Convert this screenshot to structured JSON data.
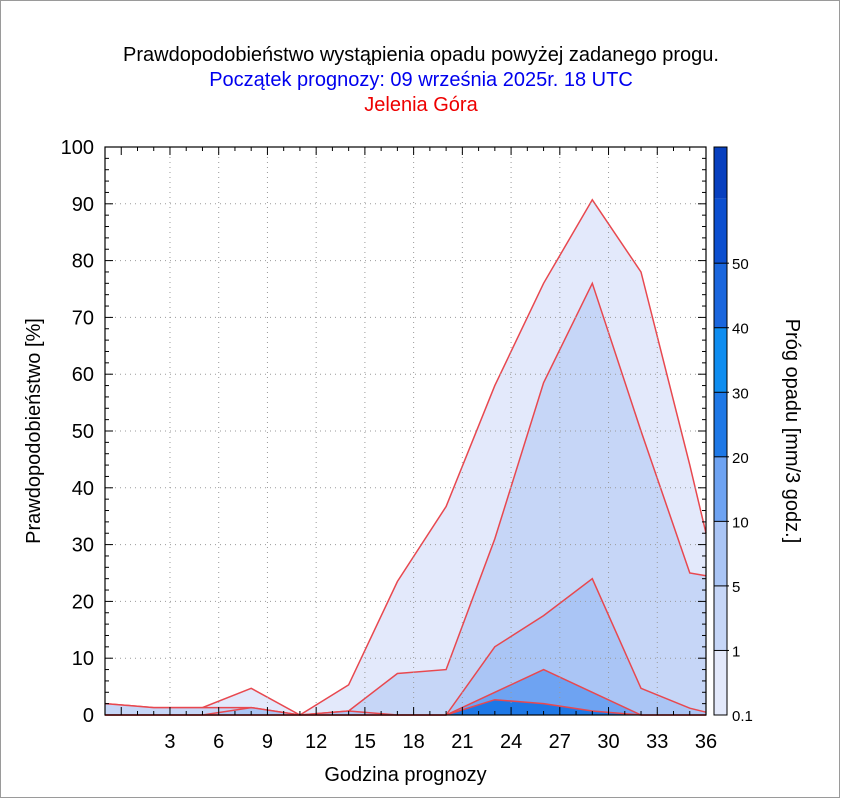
{
  "titles": {
    "line1": "Prawdopodobieństwo wystąpienia opadu powyżej zadanego progu.",
    "line2": "Początek prognozy: 09 września 2025r. 18 UTC",
    "line3": "Jelenia Góra"
  },
  "colors": {
    "title1": "#000000",
    "title2": "#0000ee",
    "title3": "#ee0000",
    "outline": "#e8484f"
  },
  "chart_data": {
    "type": "area",
    "xlabel": "Godzina prognozy",
    "ylabel": "Prawdopodobieństwo [%]",
    "colorbar_label": "Próg opadu [mm/3 godz.]",
    "xlim": [
      -1,
      36
    ],
    "ylim": [
      0,
      100
    ],
    "xticks": [
      "3",
      "6",
      "9",
      "12",
      "15",
      "18",
      "21",
      "24",
      "27",
      "30",
      "33",
      "36"
    ],
    "yticks": [
      "0",
      "10",
      "20",
      "30",
      "40",
      "50",
      "60",
      "70",
      "80",
      "90",
      "100"
    ],
    "grid": true,
    "x": [
      -1,
      2,
      5,
      8,
      11,
      14,
      17,
      20,
      23,
      26,
      29,
      32,
      35,
      36
    ],
    "series": [
      {
        "threshold": "0.1",
        "color": "#e3e9fb",
        "values": [
          2.0,
          1.3,
          1.3,
          4.7,
          0,
          5.3,
          23.5,
          36.7,
          58,
          76,
          90.7,
          78,
          44,
          32
        ]
      },
      {
        "threshold": "1",
        "color": "#c6d6f7",
        "values": [
          2.0,
          1.3,
          1.3,
          1.3,
          0,
          0.7,
          7.3,
          8.0,
          31,
          58.5,
          76,
          50,
          25,
          24.5
        ]
      },
      {
        "threshold": "5",
        "color": "#aac5f5",
        "values": [
          0,
          0,
          0,
          1.3,
          0,
          0.7,
          0,
          0,
          12,
          17.5,
          24,
          4.7,
          1.2,
          0.5
        ]
      },
      {
        "threshold": "10",
        "color": "#6ea3f2",
        "values": [
          0,
          0,
          0,
          0,
          0,
          0,
          0,
          0,
          4,
          8,
          4,
          0,
          0,
          0
        ]
      },
      {
        "threshold": "20",
        "color": "#1e78e6",
        "values": [
          0,
          0,
          0,
          0,
          0,
          0,
          0,
          0,
          2.7,
          2,
          0.7,
          0,
          0,
          0
        ]
      }
    ],
    "colorbar": {
      "labels": [
        "0.1",
        "1",
        "5",
        "10",
        "20",
        "30",
        "40",
        "50"
      ],
      "colors": [
        "#e3e9fb",
        "#c6d6f7",
        "#aac5f5",
        "#6ea3f2",
        "#1e78e6",
        "#0e8df0",
        "#1a66dd",
        "#0c4fcf",
        "#0840bf"
      ]
    }
  }
}
